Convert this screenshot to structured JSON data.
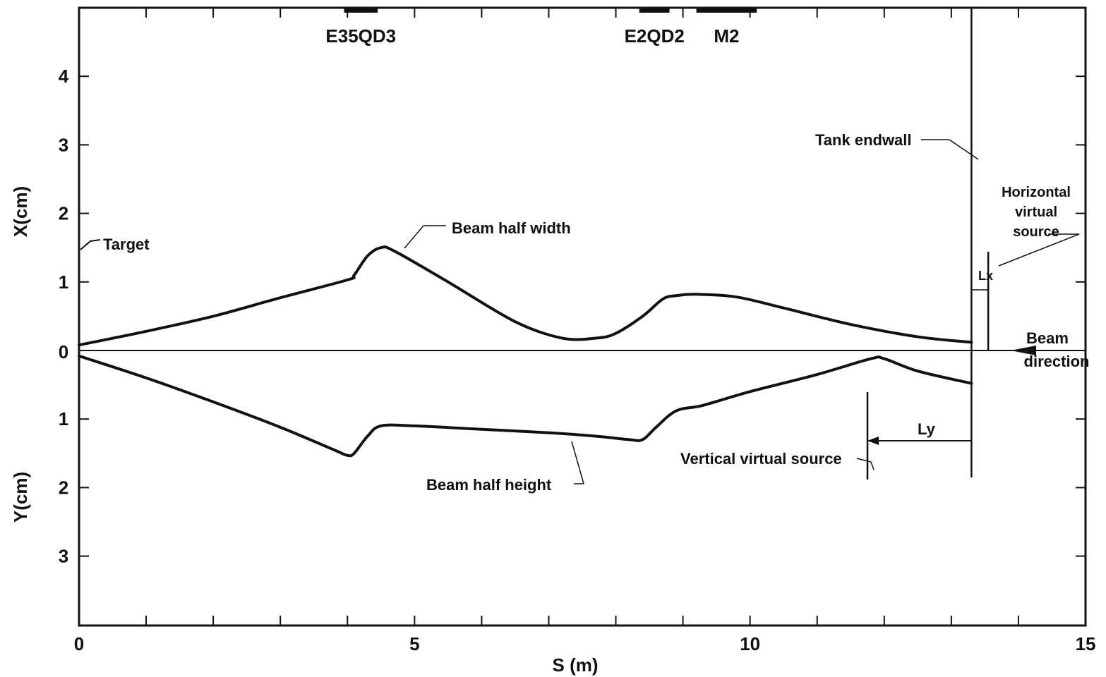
{
  "chart_data": {
    "type": "line",
    "xlabel": "S (m)",
    "ylabel_top": "X(cm)",
    "ylabel_bottom": "Y(cm)",
    "xlim": [
      0,
      15
    ],
    "ylim_top": [
      0,
      5
    ],
    "ylim_bottom": [
      0,
      4
    ],
    "x_ticks": [
      0,
      5,
      10,
      15
    ],
    "x_tick_labels": [
      "0",
      "5",
      "10",
      "15"
    ],
    "top_ticks": [
      1,
      2,
      3,
      4
    ],
    "top_tick_labels": [
      "1",
      "2",
      "3",
      "4"
    ],
    "bottom_ticks": [
      1,
      2,
      3
    ],
    "bottom_tick_labels": [
      "1",
      "2",
      "3"
    ],
    "zero_label": "0",
    "grid": false,
    "series": [
      {
        "name": "Beam half width",
        "panel": "top",
        "x": [
          0,
          1,
          2,
          3,
          4,
          4.1,
          4.3,
          4.5,
          4.7,
          5.5,
          6.5,
          7.2,
          7.7,
          8.0,
          8.4,
          8.7,
          8.9,
          9.2,
          9.8,
          10.5,
          11.5,
          12.5,
          13.3
        ],
        "y": [
          0.08,
          0.28,
          0.5,
          0.77,
          1.03,
          1.1,
          1.38,
          1.5,
          1.45,
          1.0,
          0.42,
          0.18,
          0.18,
          0.25,
          0.5,
          0.75,
          0.8,
          0.82,
          0.78,
          0.62,
          0.38,
          0.2,
          0.12
        ]
      },
      {
        "name": "Beam half height",
        "panel": "bottom",
        "x": [
          0,
          1,
          2,
          3,
          3.8,
          4,
          4.1,
          4.3,
          4.5,
          5,
          6,
          7,
          7.7,
          8.2,
          8.4,
          8.6,
          8.9,
          9.3,
          10,
          11,
          11.8,
          12,
          12.5,
          13.3
        ],
        "y": [
          0.08,
          0.4,
          0.75,
          1.12,
          1.45,
          1.53,
          1.5,
          1.25,
          1.1,
          1.1,
          1.15,
          1.2,
          1.25,
          1.3,
          1.3,
          1.12,
          0.88,
          0.8,
          0.6,
          0.35,
          0.12,
          0.12,
          0.3,
          0.48
        ]
      }
    ],
    "magnets": [
      {
        "label": "E35QD3",
        "start": 3.95,
        "end": 4.45
      },
      {
        "label": "E2QD2",
        "start": 8.35,
        "end": 8.8
      },
      {
        "label": "M2",
        "start": 9.2,
        "end": 10.1
      }
    ],
    "endwall_s": 13.3,
    "horizontal_virtual_source_s": 13.55,
    "vertical_virtual_source_s": 11.75,
    "annotations": {
      "target": "Target",
      "half_width": "Beam half width",
      "half_height": "Beam half height",
      "endwall": "Tank endwall",
      "hvs_line1": "Horizontal",
      "hvs_line2": "virtual",
      "hvs_line3": "source",
      "lx": "Lx",
      "ly": "Ly",
      "vvs": "Vertical virtual source",
      "beam_dir1": "Beam",
      "beam_dir2": "direction"
    },
    "colors": {
      "line": "#111111",
      "background": "#ffffff"
    }
  }
}
